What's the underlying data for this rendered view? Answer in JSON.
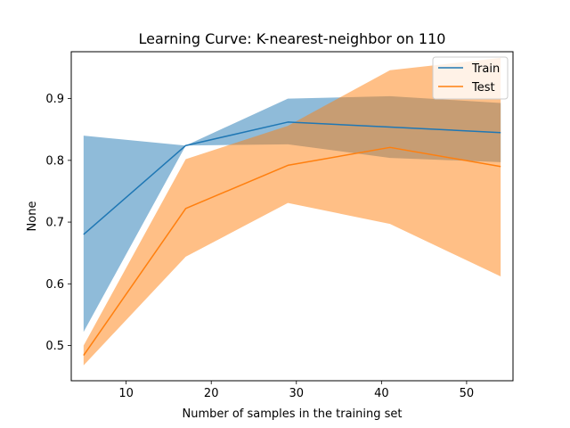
{
  "chart_data": {
    "type": "line",
    "title": "Learning Curve: K-nearest-neighbor on 110",
    "xlabel": "Number of samples in the training set",
    "ylabel": "None",
    "xlim": [
      3.55,
      55.45
    ],
    "ylim": [
      0.443,
      0.976
    ],
    "xticks": [
      10,
      20,
      30,
      40,
      50
    ],
    "yticks": [
      0.5,
      0.6,
      0.7,
      0.8,
      0.9
    ],
    "ytick_labels": [
      "0.5",
      "0.6",
      "0.7",
      "0.8",
      "0.9"
    ],
    "grid": false,
    "legend_position": "upper right",
    "x": [
      5,
      17,
      29,
      41,
      54
    ],
    "series": [
      {
        "name": "Train",
        "color": "#1f77b4",
        "values": [
          0.68,
          0.824,
          0.862,
          0.854,
          0.845
        ],
        "band_upper": [
          0.84,
          0.824,
          0.9,
          0.904,
          0.893
        ],
        "band_lower": [
          0.522,
          0.824,
          0.826,
          0.804,
          0.797
        ],
        "band_opacity": 0.5
      },
      {
        "name": "Test",
        "color": "#ff7f0e",
        "values": [
          0.484,
          0.722,
          0.792,
          0.821,
          0.79
        ],
        "band_upper": [
          0.5,
          0.802,
          0.856,
          0.946,
          0.966
        ],
        "band_lower": [
          0.468,
          0.644,
          0.731,
          0.697,
          0.612
        ],
        "band_opacity": 0.5
      }
    ]
  }
}
